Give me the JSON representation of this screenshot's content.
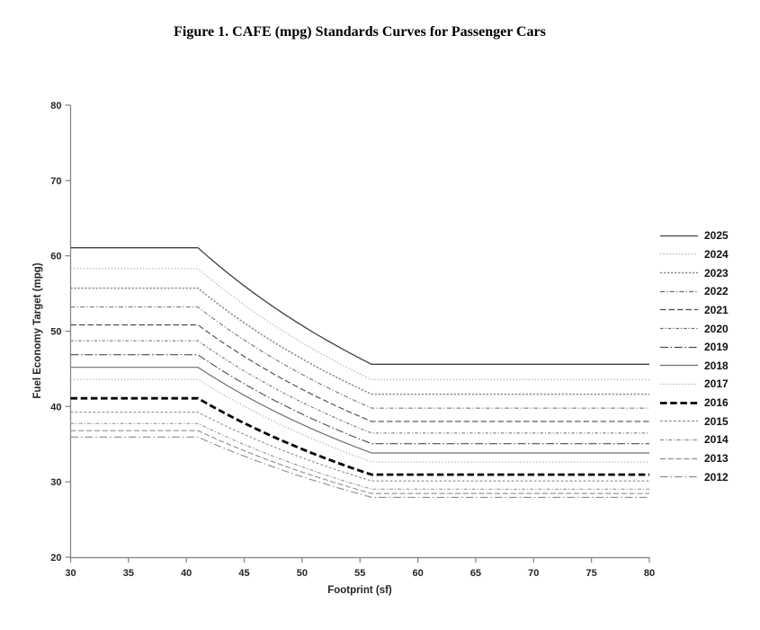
{
  "figure": {
    "title": "Figure 1. CAFE (mpg) Standards Curves for Passenger Cars"
  },
  "chart_data": {
    "type": "line",
    "title": "Figure 1. CAFE (mpg) Standards Curves for Passenger Cars",
    "xlabel": "Footprint (sf)",
    "ylabel": "Fuel Economy Target (mpg)",
    "xlim": [
      30,
      80
    ],
    "ylim": [
      20,
      80
    ],
    "xticks": [
      30,
      35,
      40,
      45,
      50,
      55,
      60,
      65,
      70,
      75,
      80
    ],
    "yticks": [
      20,
      30,
      40,
      50,
      60,
      70,
      80
    ],
    "grid": false,
    "legend_position": "right",
    "axis_color": "#808080",
    "footprint_breakpoints": {
      "flat_below_sf": 41,
      "flat_above_sf": 56
    },
    "series": [
      {
        "name": "2025",
        "flat_left_mpg": 61.07,
        "flat_right_mpg": 45.61,
        "x": [
          30,
          41,
          56,
          80
        ],
        "y": [
          61.07,
          61.07,
          45.61,
          45.61
        ],
        "color": "#3f3f3f",
        "dash": "",
        "width": 1.3
      },
      {
        "name": "2024",
        "flat_left_mpg": 58.32,
        "flat_right_mpg": 43.58,
        "x": [
          30,
          41,
          56,
          80
        ],
        "y": [
          58.32,
          58.32,
          43.58,
          43.58
        ],
        "color": "#a8a8a8",
        "dash": "1.3 2.2",
        "width": 1.1
      },
      {
        "name": "2023",
        "flat_left_mpg": 55.71,
        "flat_right_mpg": 41.64,
        "x": [
          30,
          41,
          56,
          80
        ],
        "y": [
          55.71,
          55.71,
          41.64,
          41.64
        ],
        "color": "#8c8c8c",
        "dash": "2.3 1.7",
        "width": 1.5
      },
      {
        "name": "2022",
        "flat_left_mpg": 53.21,
        "flat_right_mpg": 39.79,
        "x": [
          30,
          41,
          56,
          80
        ],
        "y": [
          53.21,
          53.21,
          39.79,
          39.79
        ],
        "color": "#6b6b6b",
        "dash": "5 2.2 1.3 2.2",
        "width": 1.0
      },
      {
        "name": "2021",
        "flat_left_mpg": 50.83,
        "flat_right_mpg": 38.02,
        "x": [
          30,
          41,
          56,
          80
        ],
        "y": [
          50.83,
          50.83,
          38.02,
          38.02
        ],
        "color": "#4d4d4d",
        "dash": "6.5 3",
        "width": 1.15
      },
      {
        "name": "2020",
        "flat_left_mpg": 48.74,
        "flat_right_mpg": 36.47,
        "x": [
          30,
          41,
          56,
          80
        ],
        "y": [
          48.74,
          48.74,
          36.47,
          36.47
        ],
        "color": "#6b6b6b",
        "dash": "3.5 2 1.2 2",
        "width": 1.0
      },
      {
        "name": "2019",
        "flat_left_mpg": 46.87,
        "flat_right_mpg": 35.07,
        "x": [
          30,
          41,
          56,
          80
        ],
        "y": [
          46.87,
          46.87,
          35.07,
          35.07
        ],
        "color": "#4d4d4d",
        "dash": "9 2.6 1.6 2.6",
        "width": 1.1
      },
      {
        "name": "2018",
        "flat_left_mpg": 45.21,
        "flat_right_mpg": 33.84,
        "x": [
          30,
          41,
          56,
          80
        ],
        "y": [
          45.21,
          45.21,
          33.84,
          33.84
        ],
        "color": "#6e6e6e",
        "dash": "",
        "width": 1.2
      },
      {
        "name": "2017",
        "flat_left_mpg": 43.61,
        "flat_right_mpg": 32.65,
        "x": [
          30,
          41,
          56,
          80
        ],
        "y": [
          43.61,
          43.61,
          32.65,
          32.65
        ],
        "color": "#a8a8a8",
        "dash": "1.3 2.2",
        "width": 1.1
      },
      {
        "name": "2016",
        "flat_left_mpg": 41.09,
        "flat_right_mpg": 30.96,
        "x": [
          30,
          41,
          56,
          80
        ],
        "y": [
          41.09,
          41.09,
          30.96,
          30.96
        ],
        "color": "#000000",
        "dash": "7.5 3.7",
        "width": 2.8
      },
      {
        "name": "2015",
        "flat_left_mpg": 39.24,
        "flat_right_mpg": 30.12,
        "x": [
          30,
          41,
          56,
          80
        ],
        "y": [
          39.24,
          39.24,
          30.12,
          30.12
        ],
        "color": "#8c8c8c",
        "dash": "2.8 2.2",
        "width": 1.1
      },
      {
        "name": "2014",
        "flat_left_mpg": 37.75,
        "flat_right_mpg": 29.03,
        "x": [
          30,
          41,
          56,
          80
        ],
        "y": [
          37.75,
          37.75,
          29.03,
          29.03
        ],
        "color": "#8c8c8c",
        "dash": "4 2 1.2 2",
        "width": 1.0
      },
      {
        "name": "2013",
        "flat_left_mpg": 36.8,
        "flat_right_mpg": 28.46,
        "x": [
          30,
          41,
          56,
          80
        ],
        "y": [
          36.8,
          36.8,
          28.46,
          28.46
        ],
        "color": "#8c8c8c",
        "dash": "6 2.8",
        "width": 1.1
      },
      {
        "name": "2012",
        "flat_left_mpg": 35.95,
        "flat_right_mpg": 27.95,
        "x": [
          30,
          41,
          56,
          80
        ],
        "y": [
          35.95,
          35.95,
          27.95,
          27.95
        ],
        "color": "#8c8c8c",
        "dash": "8.5 3 1.6 3",
        "width": 1.1
      }
    ]
  }
}
